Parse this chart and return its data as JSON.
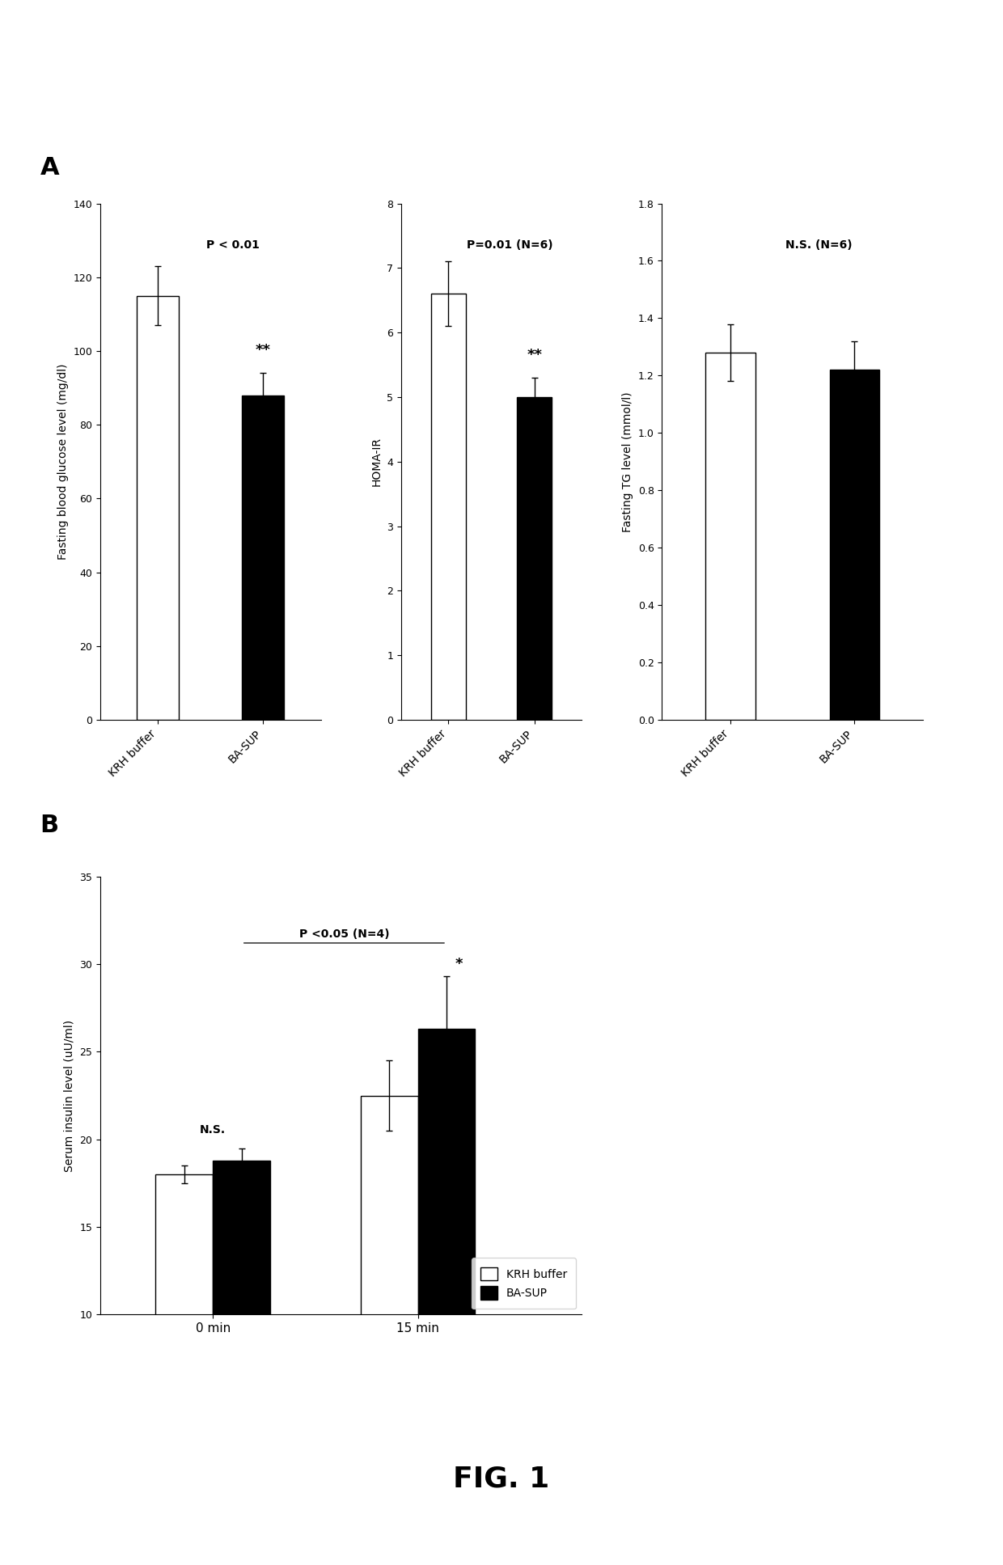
{
  "panel_A": {
    "charts": [
      {
        "ylabel": "Fasting blood glucose level (mg/dl)",
        "ylim": [
          0,
          140
        ],
        "yticks": [
          0,
          20,
          40,
          60,
          80,
          100,
          120,
          140
        ],
        "categories": [
          "KRH buffer",
          "BA-SUP"
        ],
        "values": [
          115,
          88
        ],
        "errors": [
          8,
          6
        ],
        "colors": [
          "white",
          "black"
        ],
        "p_text": "P < 0.01",
        "sig_text": "**",
        "sig_on_bar": 1
      },
      {
        "ylabel": "HOMA-IR",
        "ylim": [
          0,
          8
        ],
        "yticks": [
          0,
          1,
          2,
          3,
          4,
          5,
          6,
          7,
          8
        ],
        "categories": [
          "KRH buffer",
          "BA-SUP"
        ],
        "values": [
          6.6,
          5.0
        ],
        "errors": [
          0.5,
          0.3
        ],
        "colors": [
          "white",
          "black"
        ],
        "p_text": "P=0.01 (N=6)",
        "sig_text": "**",
        "sig_on_bar": 1
      },
      {
        "ylabel": "Fasting TG level (mmol/l)",
        "ylim": [
          0,
          1.8
        ],
        "yticks": [
          0,
          0.2,
          0.4,
          0.6,
          0.8,
          1.0,
          1.2,
          1.4,
          1.6,
          1.8
        ],
        "categories": [
          "KRH buffer",
          "BA-SUP"
        ],
        "values": [
          1.28,
          1.22
        ],
        "errors": [
          0.1,
          0.1
        ],
        "colors": [
          "white",
          "black"
        ],
        "p_text": "N.S. (N=6)",
        "sig_text": "",
        "sig_on_bar": -1
      }
    ]
  },
  "panel_B": {
    "ylabel": "Serum insulin level (uU/ml)",
    "ylim": [
      10,
      35
    ],
    "yticks": [
      10,
      15,
      20,
      25,
      30,
      35
    ],
    "groups": [
      "0 min",
      "15 min"
    ],
    "krh_values": [
      18.0,
      22.5
    ],
    "krh_errors": [
      0.5,
      2.0
    ],
    "basup_values": [
      18.8,
      26.3
    ],
    "basup_errors": [
      0.7,
      3.0
    ],
    "ns_text": "N.S.",
    "p_text": "P <0.05 (N=4)",
    "sig_text": "*"
  },
  "fig_label": "FIG. 1",
  "background_color": "#ffffff"
}
